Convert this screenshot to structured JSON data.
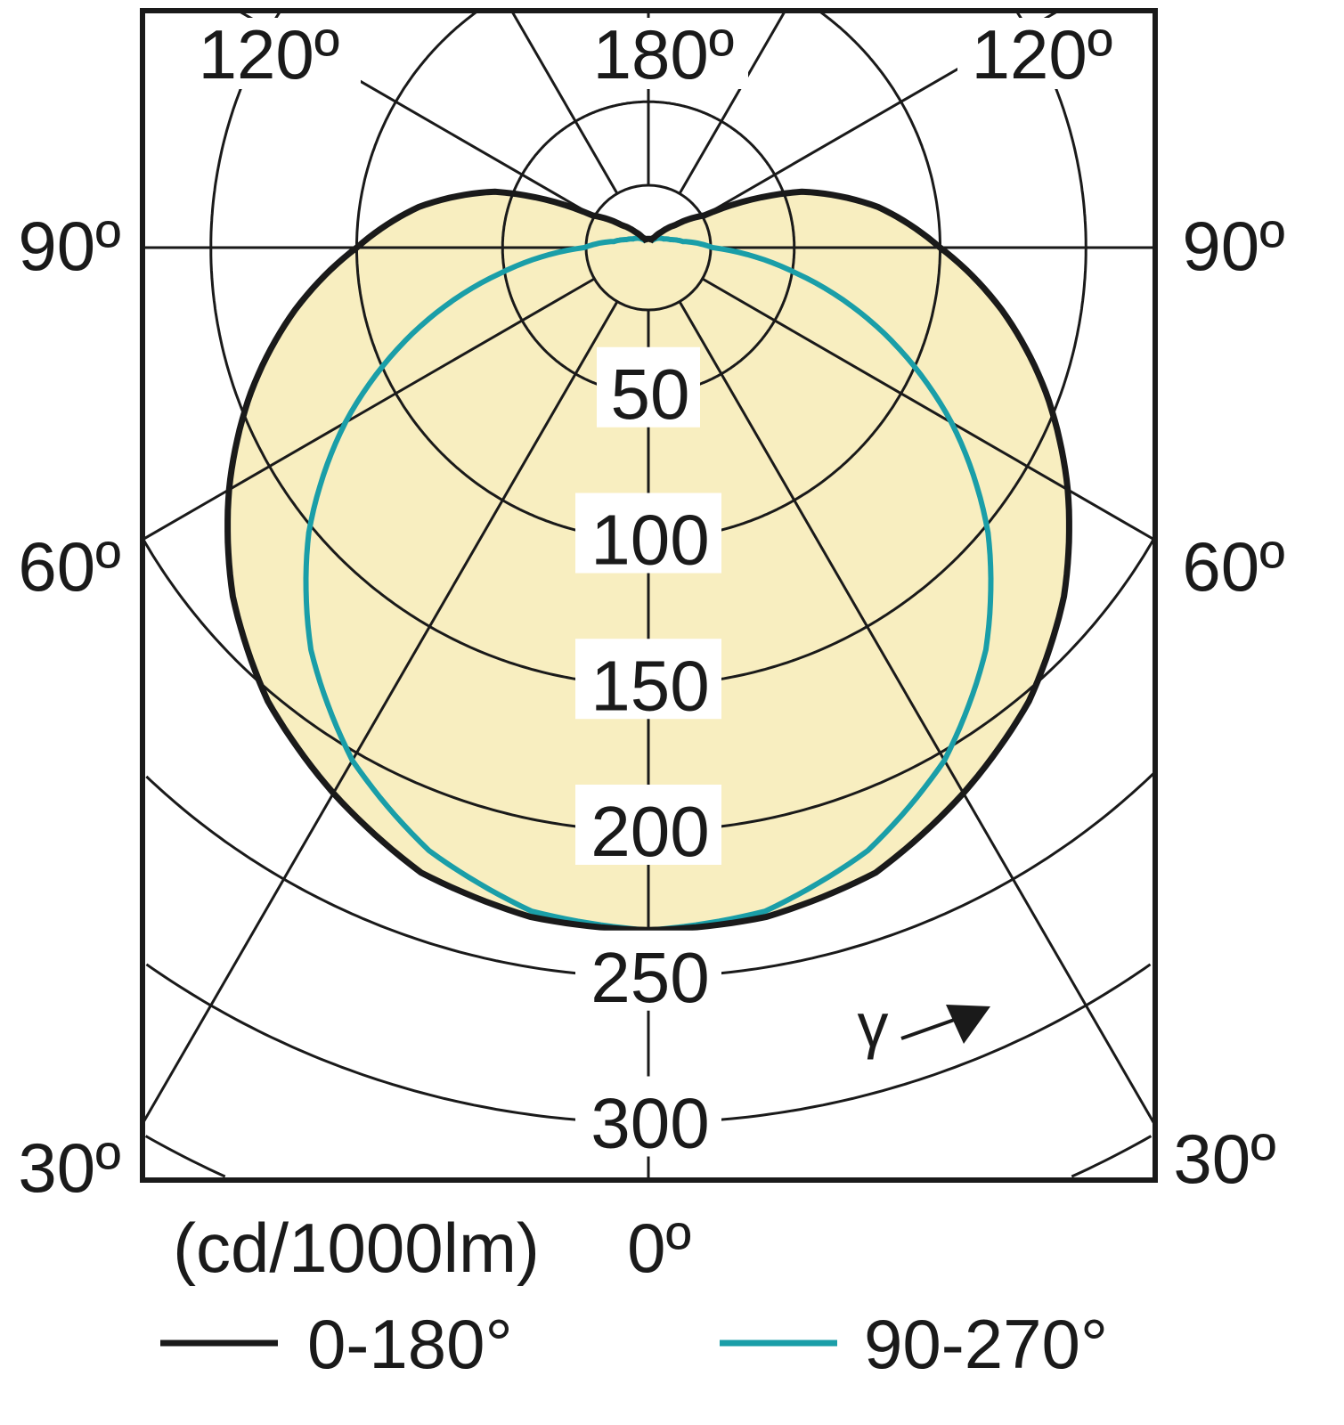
{
  "chart_data": {
    "type": "polar",
    "unit_label": "(cd/1000lm)",
    "ring_values": [
      50,
      100,
      150,
      200,
      250,
      300
    ],
    "ring_labels": [
      "50",
      "100",
      "150",
      "200",
      "250",
      "300"
    ],
    "angle_labels": {
      "top_left": "120º",
      "top_center": "180º",
      "top_right": "120º",
      "left_90": "90º",
      "right_90": "90º",
      "left_60": "60º",
      "right_60": "60º",
      "left_30": "30º",
      "right_30": "30º",
      "bottom_0": "0º"
    },
    "gamma_symbol": "γ",
    "grid": true,
    "legend_position": "bottom",
    "colors": {
      "fill": "#f8eec0",
      "series_0_180": "#1a1a1a",
      "series_90_270": "#1a9ea8"
    },
    "series": [
      {
        "name": "0-180°",
        "gamma_deg": [
          0,
          10,
          20,
          30,
          40,
          50,
          60,
          70,
          80,
          90,
          100,
          110,
          120,
          130,
          140,
          150,
          160,
          170,
          180
        ],
        "intensity": [
          234,
          233,
          228,
          216,
          203,
          186,
          166,
          145,
          123,
          100,
          80,
          56,
          22,
          12,
          7,
          4,
          3,
          3,
          3
        ]
      },
      {
        "name": "90-270°",
        "gamma_deg": [
          0,
          10,
          20,
          30,
          40,
          50,
          60,
          70,
          80,
          90,
          100,
          110,
          120,
          130,
          140,
          150,
          160,
          170,
          180
        ],
        "intensity": [
          234,
          231,
          220,
          203,
          180,
          152,
          120,
          86,
          52,
          22,
          12,
          8,
          6,
          5,
          4,
          3,
          3,
          3,
          3
        ]
      }
    ]
  }
}
